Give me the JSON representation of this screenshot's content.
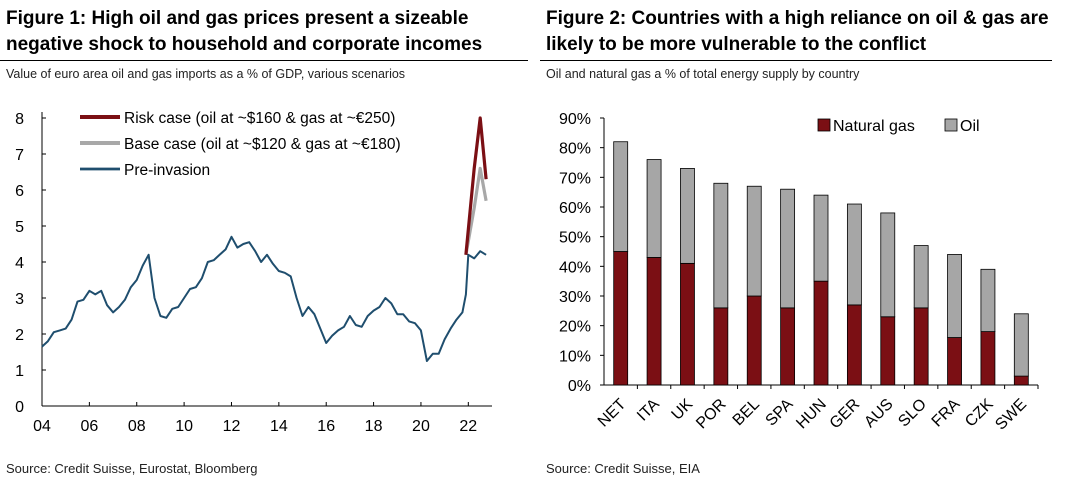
{
  "chart_data": [
    {
      "type": "line",
      "title": "Figure 1: High oil and gas prices present a sizeable negative shock to household and corporate incomes",
      "subtitle": "Value of euro area oil and gas imports as a % of GDP, various scenarios",
      "source": "Source: Credit Suisse, Eurostat, Bloomberg",
      "xlabel": "",
      "ylabel": "",
      "xlim": [
        2004,
        2023
      ],
      "ylim": [
        0,
        8
      ],
      "xticks": [
        "04",
        "06",
        "08",
        "10",
        "12",
        "14",
        "16",
        "18",
        "20",
        "22"
      ],
      "xtick_values": [
        2004,
        2006,
        2008,
        2010,
        2012,
        2014,
        2016,
        2018,
        2020,
        2022
      ],
      "yticks": [
        "0",
        "1",
        "2",
        "3",
        "4",
        "5",
        "6",
        "7",
        "8"
      ],
      "legend_position": "top-left",
      "series": [
        {
          "name": "Risk case (oil at ~$160 & gas at ~€250)",
          "color": "#7b0f14",
          "x": [
            2021.9,
            2022.25,
            2022.5,
            2022.75
          ],
          "y": [
            4.2,
            6.6,
            8.0,
            6.3
          ]
        },
        {
          "name": "Base case (oil at ~$120 & gas at ~€180)",
          "color": "#a8a8a8",
          "x": [
            2021.9,
            2022.25,
            2022.5,
            2022.75
          ],
          "y": [
            4.2,
            5.5,
            6.6,
            5.7
          ]
        },
        {
          "name": "Pre-invasion",
          "color": "#1f4e6e",
          "x": [
            2004.0,
            2004.25,
            2004.5,
            2004.75,
            2005.0,
            2005.25,
            2005.5,
            2005.75,
            2006.0,
            2006.25,
            2006.5,
            2006.75,
            2007.0,
            2007.25,
            2007.5,
            2007.75,
            2008.0,
            2008.25,
            2008.5,
            2008.75,
            2009.0,
            2009.25,
            2009.5,
            2009.75,
            2010.0,
            2010.25,
            2010.5,
            2010.75,
            2011.0,
            2011.25,
            2011.5,
            2011.75,
            2012.0,
            2012.25,
            2012.5,
            2012.75,
            2013.0,
            2013.25,
            2013.5,
            2013.75,
            2014.0,
            2014.25,
            2014.5,
            2014.75,
            2015.0,
            2015.25,
            2015.5,
            2015.75,
            2016.0,
            2016.25,
            2016.5,
            2016.75,
            2017.0,
            2017.25,
            2017.5,
            2017.75,
            2018.0,
            2018.25,
            2018.5,
            2018.75,
            2019.0,
            2019.25,
            2019.5,
            2019.75,
            2020.0,
            2020.25,
            2020.5,
            2020.75,
            2021.0,
            2021.25,
            2021.5,
            2021.75,
            2021.9,
            2022.0,
            2022.25,
            2022.5,
            2022.75
          ],
          "y": [
            1.65,
            1.8,
            2.05,
            2.1,
            2.15,
            2.4,
            2.9,
            2.95,
            3.2,
            3.1,
            3.2,
            2.8,
            2.6,
            2.75,
            2.95,
            3.3,
            3.5,
            3.9,
            4.2,
            3.0,
            2.5,
            2.45,
            2.7,
            2.75,
            3.0,
            3.25,
            3.3,
            3.55,
            4.0,
            4.05,
            4.2,
            4.35,
            4.7,
            4.4,
            4.5,
            4.55,
            4.3,
            4.0,
            4.2,
            3.95,
            3.75,
            3.7,
            3.6,
            3.0,
            2.5,
            2.75,
            2.55,
            2.15,
            1.75,
            1.95,
            2.1,
            2.2,
            2.5,
            2.25,
            2.2,
            2.5,
            2.65,
            2.75,
            3.0,
            2.85,
            2.55,
            2.55,
            2.35,
            2.3,
            2.1,
            1.25,
            1.45,
            1.45,
            1.85,
            2.15,
            2.4,
            2.6,
            3.1,
            4.2,
            4.1,
            4.3,
            4.2
          ]
        }
      ]
    },
    {
      "type": "bar",
      "stacked": true,
      "title": "Figure 2: Countries with a high reliance on oil & gas are likely to be more vulnerable to the conflict",
      "subtitle": "Oil and natural gas a % of total energy supply by country",
      "source": "Source: Credit Suisse, EIA",
      "xlabel": "",
      "ylabel": "",
      "ylim": [
        0,
        90
      ],
      "yticks": [
        "0%",
        "10%",
        "20%",
        "30%",
        "40%",
        "50%",
        "60%",
        "70%",
        "80%",
        "90%"
      ],
      "legend_position": "top-right",
      "categories": [
        "NET",
        "ITA",
        "UK",
        "POR",
        "BEL",
        "SPA",
        "HUN",
        "GER",
        "AUS",
        "SLO",
        "FRA",
        "CZK",
        "SWE"
      ],
      "series": [
        {
          "name": "Natural gas",
          "color": "#7b0f14",
          "values": [
            45,
            43,
            41,
            26,
            30,
            26,
            35,
            27,
            23,
            26,
            16,
            18,
            3
          ]
        },
        {
          "name": "Oil",
          "color": "#a6a6a6",
          "values": [
            37,
            33,
            32,
            42,
            37,
            40,
            29,
            34,
            35,
            21,
            28,
            21,
            21
          ]
        }
      ]
    }
  ]
}
